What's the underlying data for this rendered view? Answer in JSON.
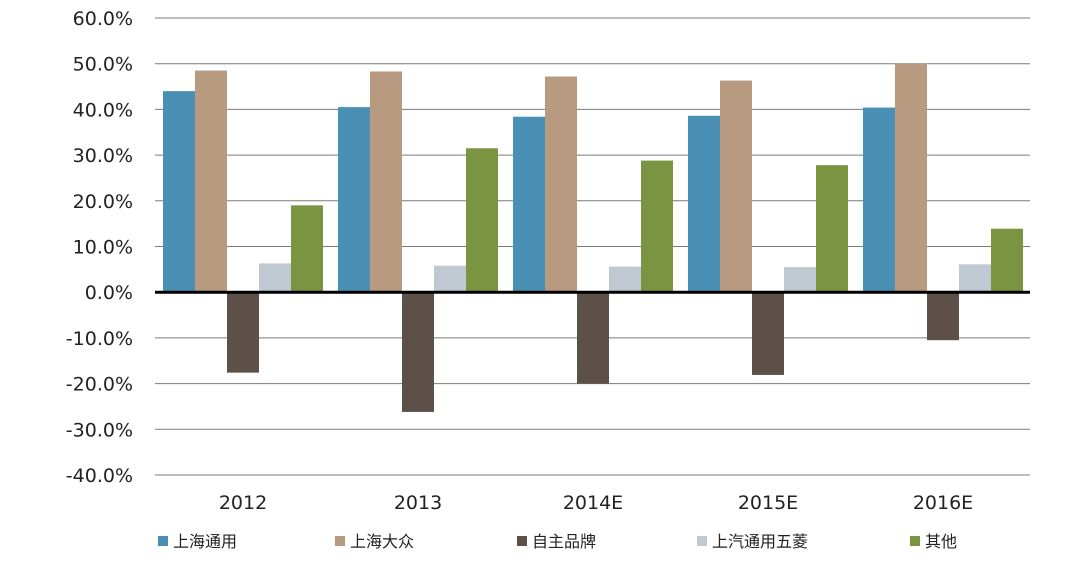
{
  "chart_data": {
    "type": "bar",
    "title": "",
    "xlabel": "",
    "ylabel": "",
    "categories": [
      "2012",
      "2013",
      "2014E",
      "2015E",
      "2016E"
    ],
    "ylim": [
      -40,
      60
    ],
    "yticks": [
      60,
      50,
      40,
      30,
      20,
      10,
      0,
      -10,
      -20,
      -30,
      -40
    ],
    "ytick_labels": [
      "60.0%",
      "50.0%",
      "40.0%",
      "30.0%",
      "20.0%",
      "10.0%",
      "0.0%",
      "-10.0%",
      "-20.0%",
      "-30.0%",
      "-40.0%"
    ],
    "grid": true,
    "legend_position": "bottom",
    "series": [
      {
        "name": "上海通用",
        "color": "#4a90b4",
        "values": [
          44.0,
          40.5,
          38.4,
          38.6,
          40.4
        ]
      },
      {
        "name": "上海大众",
        "color": "#b89a80",
        "values": [
          48.5,
          48.3,
          47.2,
          46.3,
          50.0
        ]
      },
      {
        "name": "自主品牌",
        "color": "#5c5048",
        "values": [
          -17.6,
          -26.2,
          -20.0,
          -18.1,
          -10.5
        ]
      },
      {
        "name": "上汽通用五菱",
        "color": "#c0c8d2",
        "values": [
          6.3,
          5.8,
          5.6,
          5.5,
          6.1
        ]
      },
      {
        "name": "其他",
        "color": "#7a9442",
        "values": [
          19.0,
          31.5,
          28.8,
          27.8,
          13.9
        ]
      }
    ]
  }
}
